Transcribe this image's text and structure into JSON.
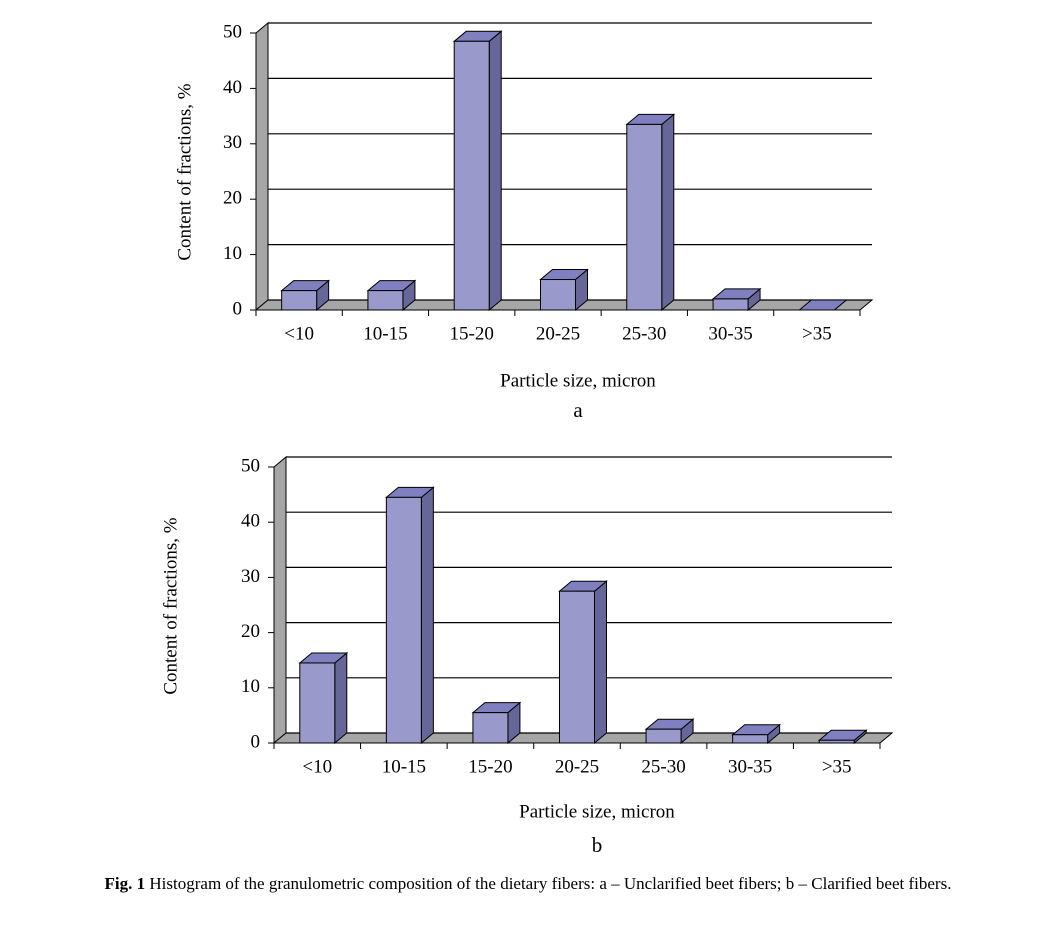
{
  "chart_data": [
    {
      "type": "bar3d",
      "caption": "a",
      "y_label": "Content of fractions, %",
      "x_label": "Particle size, micron",
      "categories": [
        "<10",
        "10-15",
        "15-20",
        "20-25",
        "25-30",
        "30-35",
        ">35"
      ],
      "values": [
        3.5,
        3.5,
        48.5,
        5.5,
        33.5,
        2,
        0
      ],
      "color": "#9999cc",
      "ylim": [
        0,
        50
      ],
      "yticks": [
        0,
        10,
        20,
        30,
        40,
        50
      ],
      "grid": true
    },
    {
      "type": "bar3d",
      "caption": "b",
      "y_label": "Content of fractions, %",
      "x_label": "Particle size, micron",
      "categories": [
        "<10",
        "10-15",
        "15-20",
        "20-25",
        "25-30",
        "30-35",
        ">35"
      ],
      "values": [
        14.5,
        44.5,
        5.5,
        27.5,
        2.5,
        1.5,
        0.5
      ],
      "color": "#9999cc",
      "ylim": [
        0,
        50
      ],
      "yticks": [
        0,
        10,
        20,
        30,
        40,
        50
      ],
      "grid": true
    }
  ],
  "caption": {
    "label": "Fig. 1",
    "text": "Histogram of the granulometric composition of the dietary fibers: a – Unclarified beet fibers; b – Clarified beet fibers."
  }
}
